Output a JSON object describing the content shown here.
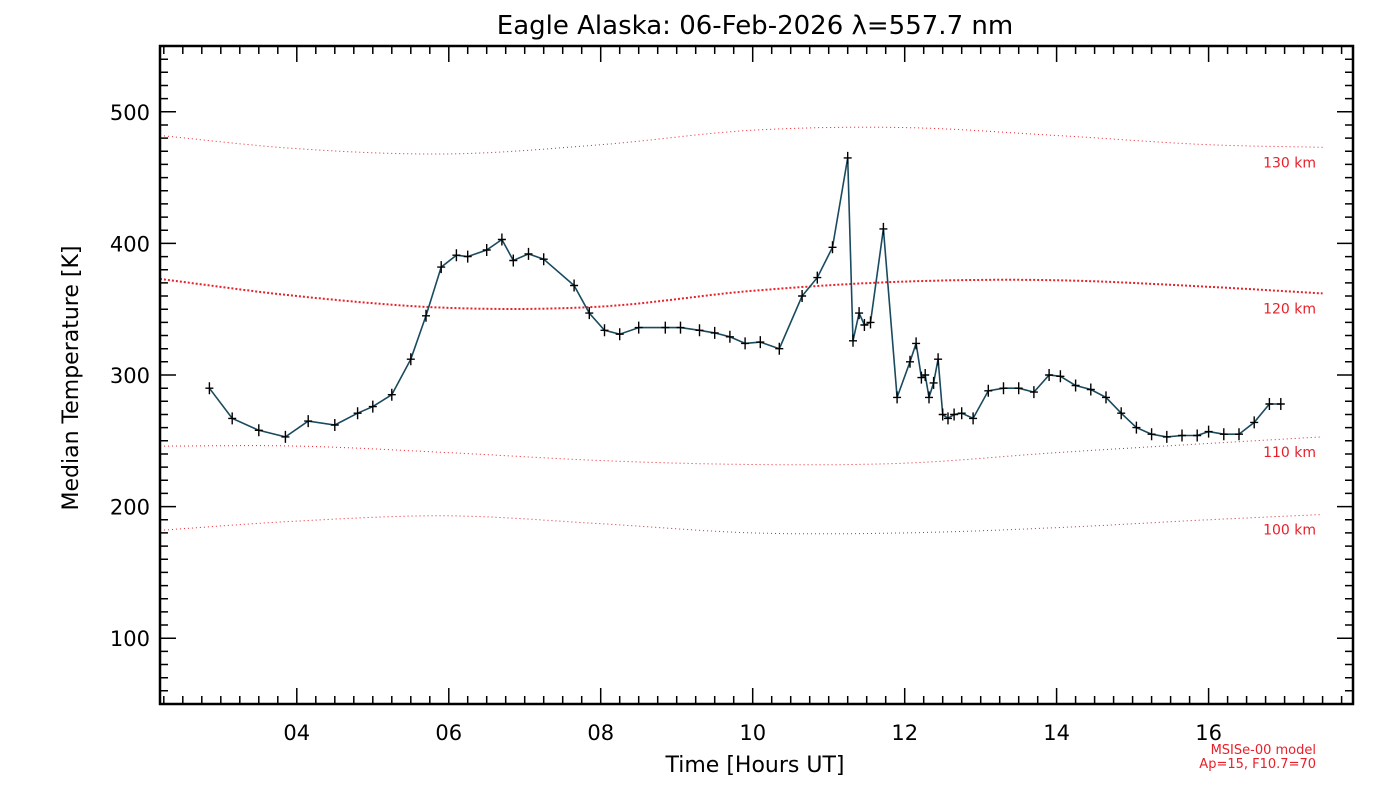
{
  "chart_data": {
    "type": "line",
    "title": "Eagle Alaska: 06-Feb-2026 λ=557.7 nm",
    "xlabel": "Time [Hours UT]",
    "ylabel": "Median Temperature [K]",
    "xlim": [
      2.2,
      17.9
    ],
    "ylim": [
      50,
      550
    ],
    "x_ticks": [
      4,
      6,
      8,
      10,
      12,
      14,
      16
    ],
    "x_tick_labels": [
      "04",
      "06",
      "08",
      "10",
      "12",
      "14",
      "16"
    ],
    "y_ticks": [
      100,
      200,
      300,
      400,
      500
    ],
    "y_tick_labels": [
      "100",
      "200",
      "300",
      "400",
      "500"
    ],
    "grid": false,
    "series": [
      {
        "role": "measurement",
        "color": "#1a4a5e",
        "marker_color": "#000000",
        "marker": "plus",
        "x": [
          2.85,
          3.15,
          3.5,
          3.85,
          4.15,
          4.5,
          4.8,
          5.0,
          5.25,
          5.5,
          5.7,
          5.9,
          6.1,
          6.25,
          6.5,
          6.7,
          6.85,
          7.05,
          7.25,
          7.65,
          7.85,
          8.05,
          8.25,
          8.5,
          8.85,
          9.05,
          9.3,
          9.5,
          9.7,
          9.9,
          10.1,
          10.35,
          10.65,
          10.85,
          11.05,
          11.25,
          11.32,
          11.4,
          11.47,
          11.55,
          11.72,
          11.9,
          12.07,
          12.15,
          12.22,
          12.27,
          12.32,
          12.38,
          12.44,
          12.5,
          12.57,
          12.65,
          12.75,
          12.9,
          13.1,
          13.3,
          13.5,
          13.7,
          13.9,
          14.05,
          14.25,
          14.45,
          14.65,
          14.85,
          15.05,
          15.25,
          15.45,
          15.65,
          15.85,
          16.0,
          16.2,
          16.4,
          16.6,
          16.8,
          16.95
        ],
        "y": [
          290,
          267,
          258,
          253,
          265,
          262,
          271,
          276,
          285,
          312,
          345,
          382,
          391,
          390,
          395,
          403,
          387,
          392,
          388,
          368,
          347,
          334,
          331,
          336,
          336,
          336,
          334,
          332,
          329,
          324,
          325,
          320,
          360,
          374,
          397,
          465,
          326,
          347,
          338,
          340,
          411,
          283,
          310,
          324,
          298,
          300,
          283,
          294,
          312,
          270,
          267,
          270,
          271,
          267,
          288,
          290,
          290,
          287,
          300,
          299,
          292,
          289,
          283,
          271,
          260,
          255,
          253,
          254,
          254,
          257,
          255,
          255,
          264,
          278,
          278
        ]
      }
    ],
    "model_curves": [
      {
        "name": "130 km",
        "color": "#e8202a",
        "style": "dotted",
        "x": [
          2.2,
          4.0,
          6.0,
          8.0,
          10.0,
          12.0,
          14.0,
          16.0,
          17.5
        ],
        "y": [
          482,
          472,
          468,
          475,
          486,
          488,
          482,
          475,
          473
        ]
      },
      {
        "name": "120 km",
        "color": "#e8202a",
        "style": "dotted-bold",
        "x": [
          2.2,
          4.0,
          6.0,
          8.0,
          10.0,
          12.0,
          14.0,
          16.0,
          17.5
        ],
        "y": [
          373,
          360,
          351,
          352,
          364,
          371,
          372,
          367,
          362
        ]
      },
      {
        "name": "110 km",
        "color": "#e8202a",
        "style": "dotted",
        "x": [
          2.2,
          4.0,
          6.0,
          8.0,
          10.0,
          12.0,
          14.0,
          16.0,
          17.5
        ],
        "y": [
          246,
          246,
          241,
          235,
          232,
          233,
          241,
          248,
          253
        ]
      },
      {
        "name": "100 km",
        "color": "#e8202a",
        "style": "dotted",
        "x": [
          2.2,
          4.0,
          6.0,
          8.0,
          10.0,
          12.0,
          14.0,
          16.0,
          17.5
        ],
        "y": [
          182,
          189,
          193,
          187,
          180,
          180,
          184,
          190,
          194
        ]
      }
    ],
    "model_note": {
      "line1": "MSISe-00 model",
      "line2": "Ap=15, F10.7=70",
      "color": "#e8202a"
    }
  }
}
